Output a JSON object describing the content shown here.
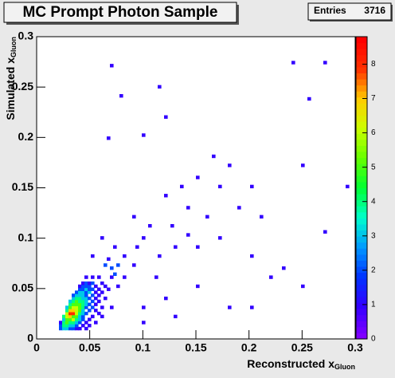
{
  "chart_data": {
    "type": "hist2d",
    "title": "MC Prompt Photon Sample",
    "stats": {
      "label": "Entries",
      "value": 3716
    },
    "x_label": {
      "text": "Reconstructed x",
      "subscript": "Gluon"
    },
    "y_label": {
      "text": "Simulated x",
      "subscript": "Gluon"
    },
    "xlim": [
      0,
      0.3
    ],
    "ylim": [
      0,
      0.3
    ],
    "zlim": [
      0,
      8.8
    ],
    "xticks": [
      0,
      0.05,
      0.1,
      0.15,
      0.2,
      0.25,
      0.3
    ],
    "yticks": [
      0,
      0.05,
      0.1,
      0.15,
      0.2,
      0.25,
      0.3
    ],
    "zticks": [
      0,
      1,
      2,
      3,
      4,
      5,
      6,
      7,
      8
    ],
    "bin_width": 0.003,
    "palette": [
      "#7f00ff",
      "#3300ff",
      "#0033ff",
      "#0099ff",
      "#00ffcc",
      "#00ff33",
      "#66ff00",
      "#ccff00",
      "#ffcc00",
      "#ff3300",
      "#ff0000"
    ],
    "cells": [
      [
        0.021,
        0.009,
        2
      ],
      [
        0.024,
        0.009,
        3
      ],
      [
        0.027,
        0.009,
        3
      ],
      [
        0.03,
        0.009,
        2
      ],
      [
        0.033,
        0.009,
        2
      ],
      [
        0.036,
        0.009,
        1
      ],
      [
        0.039,
        0.009,
        1
      ],
      [
        0.045,
        0.009,
        1
      ],
      [
        0.021,
        0.012,
        2
      ],
      [
        0.024,
        0.012,
        4
      ],
      [
        0.027,
        0.012,
        4
      ],
      [
        0.03,
        0.012,
        3
      ],
      [
        0.033,
        0.012,
        3
      ],
      [
        0.036,
        0.012,
        2
      ],
      [
        0.042,
        0.012,
        1
      ],
      [
        0.048,
        0.012,
        1
      ],
      [
        0.021,
        0.015,
        1
      ],
      [
        0.024,
        0.015,
        4
      ],
      [
        0.027,
        0.015,
        5
      ],
      [
        0.03,
        0.015,
        4
      ],
      [
        0.033,
        0.015,
        4
      ],
      [
        0.036,
        0.015,
        3
      ],
      [
        0.039,
        0.015,
        2
      ],
      [
        0.045,
        0.015,
        1
      ],
      [
        0.054,
        0.015,
        1
      ],
      [
        0.024,
        0.018,
        3
      ],
      [
        0.027,
        0.018,
        5
      ],
      [
        0.03,
        0.018,
        5
      ],
      [
        0.033,
        0.018,
        6
      ],
      [
        0.036,
        0.018,
        4
      ],
      [
        0.039,
        0.018,
        3
      ],
      [
        0.042,
        0.018,
        2
      ],
      [
        0.048,
        0.018,
        1
      ],
      [
        0.024,
        0.021,
        4
      ],
      [
        0.027,
        0.021,
        6
      ],
      [
        0.03,
        0.021,
        7
      ],
      [
        0.033,
        0.021,
        5
      ],
      [
        0.036,
        0.021,
        5
      ],
      [
        0.039,
        0.021,
        3
      ],
      [
        0.042,
        0.021,
        2
      ],
      [
        0.051,
        0.021,
        1
      ],
      [
        0.027,
        0.024,
        6
      ],
      [
        0.03,
        0.024,
        8
      ],
      [
        0.033,
        0.024,
        8
      ],
      [
        0.036,
        0.024,
        6
      ],
      [
        0.039,
        0.024,
        4
      ],
      [
        0.042,
        0.024,
        3
      ],
      [
        0.045,
        0.024,
        2
      ],
      [
        0.057,
        0.024,
        1
      ],
      [
        0.027,
        0.027,
        4
      ],
      [
        0.03,
        0.027,
        7
      ],
      [
        0.033,
        0.027,
        7
      ],
      [
        0.036,
        0.027,
        6
      ],
      [
        0.039,
        0.027,
        5
      ],
      [
        0.042,
        0.027,
        3
      ],
      [
        0.048,
        0.027,
        2
      ],
      [
        0.054,
        0.027,
        1
      ],
      [
        0.027,
        0.03,
        3
      ],
      [
        0.03,
        0.03,
        5
      ],
      [
        0.033,
        0.03,
        6
      ],
      [
        0.036,
        0.03,
        6
      ],
      [
        0.039,
        0.03,
        5
      ],
      [
        0.042,
        0.03,
        4
      ],
      [
        0.045,
        0.03,
        2
      ],
      [
        0.051,
        0.03,
        2
      ],
      [
        0.06,
        0.03,
        1
      ],
      [
        0.03,
        0.033,
        4
      ],
      [
        0.033,
        0.033,
        5
      ],
      [
        0.036,
        0.033,
        5
      ],
      [
        0.039,
        0.033,
        5
      ],
      [
        0.042,
        0.033,
        4
      ],
      [
        0.045,
        0.033,
        3
      ],
      [
        0.048,
        0.033,
        2
      ],
      [
        0.054,
        0.033,
        1
      ],
      [
        0.03,
        0.036,
        3
      ],
      [
        0.033,
        0.036,
        4
      ],
      [
        0.036,
        0.036,
        5
      ],
      [
        0.039,
        0.036,
        4
      ],
      [
        0.042,
        0.036,
        4
      ],
      [
        0.045,
        0.036,
        3
      ],
      [
        0.051,
        0.036,
        2
      ],
      [
        0.057,
        0.036,
        1
      ],
      [
        0.033,
        0.039,
        3
      ],
      [
        0.036,
        0.039,
        4
      ],
      [
        0.039,
        0.039,
        4
      ],
      [
        0.042,
        0.039,
        3
      ],
      [
        0.045,
        0.039,
        3
      ],
      [
        0.048,
        0.039,
        2
      ],
      [
        0.054,
        0.039,
        1
      ],
      [
        0.063,
        0.039,
        1
      ],
      [
        0.033,
        0.042,
        2
      ],
      [
        0.036,
        0.042,
        3
      ],
      [
        0.039,
        0.042,
        3
      ],
      [
        0.042,
        0.042,
        3
      ],
      [
        0.045,
        0.042,
        2
      ],
      [
        0.051,
        0.042,
        2
      ],
      [
        0.057,
        0.042,
        1
      ],
      [
        0.036,
        0.045,
        2
      ],
      [
        0.039,
        0.045,
        3
      ],
      [
        0.042,
        0.045,
        3
      ],
      [
        0.045,
        0.045,
        2
      ],
      [
        0.048,
        0.045,
        3
      ],
      [
        0.054,
        0.045,
        1
      ],
      [
        0.06,
        0.045,
        1
      ],
      [
        0.039,
        0.048,
        2
      ],
      [
        0.042,
        0.048,
        2
      ],
      [
        0.045,
        0.048,
        3
      ],
      [
        0.048,
        0.048,
        2
      ],
      [
        0.051,
        0.048,
        2
      ],
      [
        0.057,
        0.048,
        1
      ],
      [
        0.066,
        0.048,
        1
      ],
      [
        0.039,
        0.051,
        1
      ],
      [
        0.042,
        0.051,
        2
      ],
      [
        0.045,
        0.051,
        2
      ],
      [
        0.048,
        0.051,
        2
      ],
      [
        0.054,
        0.051,
        1
      ],
      [
        0.063,
        0.051,
        1
      ],
      [
        0.042,
        0.054,
        1
      ],
      [
        0.045,
        0.054,
        2
      ],
      [
        0.048,
        0.054,
        1
      ],
      [
        0.051,
        0.054,
        2
      ],
      [
        0.06,
        0.054,
        1
      ],
      [
        0.045,
        0.06,
        1
      ],
      [
        0.051,
        0.06,
        1
      ],
      [
        0.057,
        0.06,
        1
      ],
      [
        0.069,
        0.06,
        1
      ],
      [
        0.069,
        0.069,
        2
      ],
      [
        0.072,
        0.063,
        2
      ],
      [
        0.063,
        0.072,
        2
      ],
      [
        0.075,
        0.072,
        2
      ],
      [
        0.066,
        0.078,
        1
      ],
      [
        0.069,
        0.27,
        1
      ],
      [
        0.24,
        0.273,
        1
      ],
      [
        0.27,
        0.273,
        1
      ],
      [
        0.078,
        0.24,
        1
      ],
      [
        0.114,
        0.249,
        1
      ],
      [
        0.255,
        0.237,
        1
      ],
      [
        0.066,
        0.198,
        1
      ],
      [
        0.099,
        0.201,
        1
      ],
      [
        0.12,
        0.219,
        1
      ],
      [
        0.15,
        0.159,
        1
      ],
      [
        0.18,
        0.171,
        1
      ],
      [
        0.201,
        0.15,
        1
      ],
      [
        0.249,
        0.171,
        1
      ],
      [
        0.291,
        0.15,
        1
      ],
      [
        0.27,
        0.105,
        1
      ],
      [
        0.12,
        0.141,
        1
      ],
      [
        0.141,
        0.129,
        1
      ],
      [
        0.159,
        0.12,
        1
      ],
      [
        0.09,
        0.12,
        1
      ],
      [
        0.099,
        0.099,
        1
      ],
      [
        0.129,
        0.09,
        1
      ],
      [
        0.171,
        0.099,
        1
      ],
      [
        0.201,
        0.081,
        1
      ],
      [
        0.231,
        0.069,
        1
      ],
      [
        0.081,
        0.081,
        1
      ],
      [
        0.111,
        0.06,
        1
      ],
      [
        0.15,
        0.051,
        1
      ],
      [
        0.18,
        0.03,
        1
      ],
      [
        0.219,
        0.06,
        1
      ],
      [
        0.099,
        0.03,
        1
      ],
      [
        0.072,
        0.09,
        1
      ],
      [
        0.06,
        0.099,
        1
      ],
      [
        0.051,
        0.081,
        1
      ],
      [
        0.09,
        0.072,
        1
      ],
      [
        0.126,
        0.111,
        1
      ],
      [
        0.15,
        0.09,
        1
      ],
      [
        0.21,
        0.12,
        1
      ],
      [
        0.189,
        0.129,
        1
      ],
      [
        0.171,
        0.15,
        1
      ],
      [
        0.141,
        0.102,
        1
      ],
      [
        0.081,
        0.06,
        1
      ],
      [
        0.075,
        0.051,
        1
      ],
      [
        0.069,
        0.03,
        1
      ],
      [
        0.12,
        0.039,
        1
      ],
      [
        0.06,
        0.021,
        1
      ],
      [
        0.099,
        0.015,
        1
      ],
      [
        0.129,
        0.021,
        1
      ],
      [
        0.201,
        0.03,
        1
      ],
      [
        0.249,
        0.051,
        1
      ],
      [
        0.114,
        0.081,
        1
      ],
      [
        0.093,
        0.09,
        1
      ],
      [
        0.105,
        0.111,
        1
      ],
      [
        0.135,
        0.15,
        1
      ],
      [
        0.165,
        0.18,
        1
      ]
    ]
  }
}
